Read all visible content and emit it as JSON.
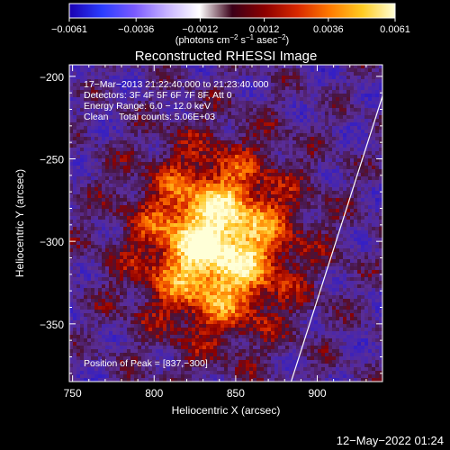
{
  "chart_data": {
    "type": "heatmap",
    "title": "Reconstructed RHESSI Image",
    "xlabel": "Heliocentric X (arcsec)",
    "ylabel": "Heliocentric Y (arcsec)",
    "xlim": [
      748,
      940
    ],
    "ylim": [
      -385,
      -193
    ],
    "x_ticks": [
      {
        "value": 750,
        "label": "750"
      },
      {
        "value": 800,
        "label": "800"
      },
      {
        "value": 850,
        "label": "850"
      },
      {
        "value": 900,
        "label": "900"
      }
    ],
    "y_ticks": [
      {
        "value": -200,
        "label": "−200"
      },
      {
        "value": -250,
        "label": "−250"
      },
      {
        "value": -300,
        "label": "−300"
      },
      {
        "value": -350,
        "label": "−350"
      }
    ],
    "colorbar": {
      "range": [
        -0.0061,
        0.0061
      ],
      "ticks": [
        {
          "value": -0.0061,
          "label": "−0.0061"
        },
        {
          "value": -0.0036,
          "label": "−0.0036"
        },
        {
          "value": -0.0012,
          "label": "−0.0012"
        },
        {
          "value": 0.0012,
          "label": "0.0012"
        },
        {
          "value": 0.0036,
          "label": "0.0036"
        },
        {
          "value": 0.0061,
          "label": "0.0061"
        }
      ],
      "unit_main": "(photons cm",
      "unit_exp1": "−2",
      "unit_mid": " s",
      "unit_exp2": "−1",
      "unit_mid2": " asec",
      "unit_exp3": "−2",
      "unit_end": ")",
      "colors": [
        "#1a00b0",
        "#2a3cff",
        "#7a5aff",
        "#c7b3ff",
        "#ffffff",
        "#3a0018",
        "#8c0000",
        "#d82800",
        "#ff7a00",
        "#ffcc22",
        "#ffffd8"
      ]
    },
    "peak": {
      "x": 837,
      "y": -300,
      "value": 0.0061
    },
    "limb_line": [
      [
        884,
        -385
      ],
      [
        940,
        -212
      ]
    ],
    "info": {
      "line1": "17−Mar−2013 21:22:40.000 to 21:23:40.000",
      "line2": "Detectors: 3F 4F 5F 6F 7F 8F, Att 0",
      "line3": "Energy Range: 6.0 − 12.0 keV",
      "line4": "Clean    Total counts: 5.06E+03",
      "peak_text": "Position of Peak = [837,−300]"
    },
    "colors": {
      "background_field": "#5a2a8c",
      "axes": "#ffffff"
    }
  },
  "footer": {
    "timestamp": "12−May−2022 01:24"
  }
}
